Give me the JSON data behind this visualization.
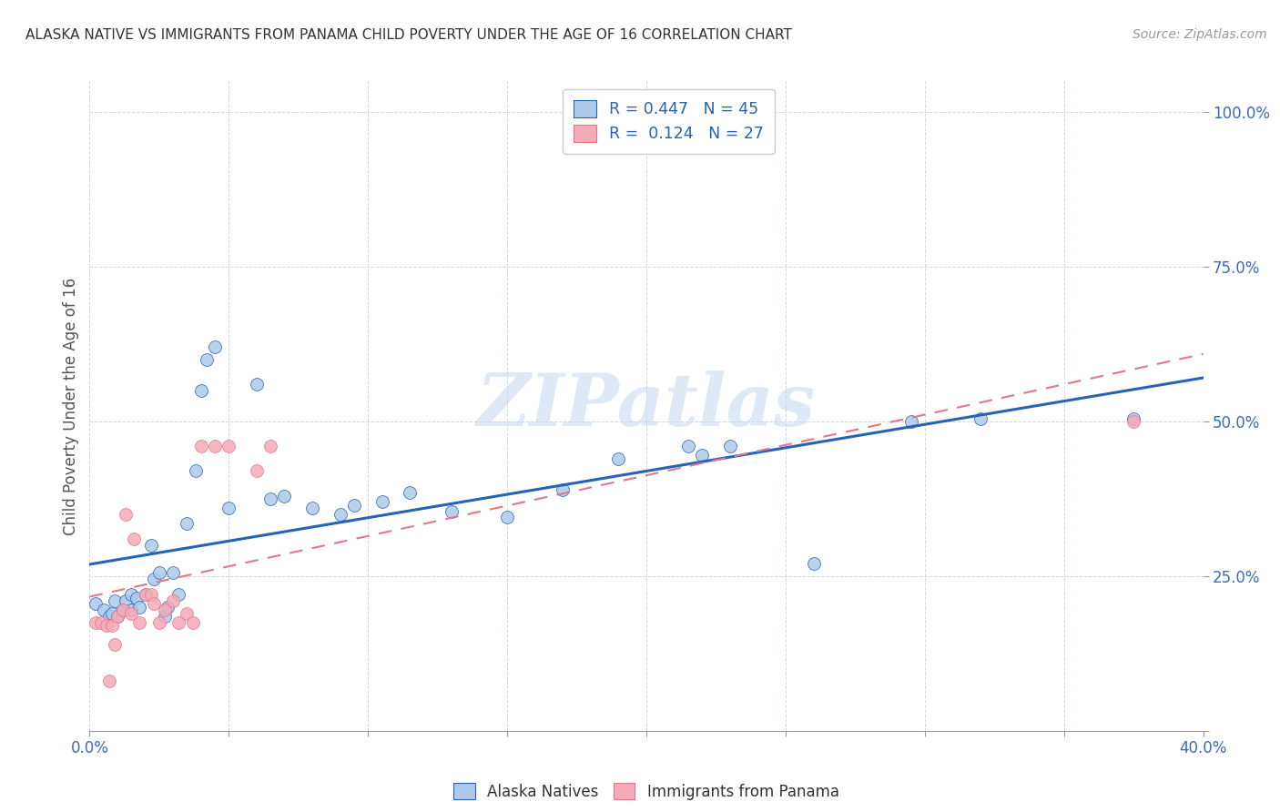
{
  "title": "ALASKA NATIVE VS IMMIGRANTS FROM PANAMA CHILD POVERTY UNDER THE AGE OF 16 CORRELATION CHART",
  "source": "Source: ZipAtlas.com",
  "ylabel": "Child Poverty Under the Age of 16",
  "xlim": [
    0.0,
    0.4
  ],
  "ylim": [
    0.0,
    1.05
  ],
  "xticks": [
    0.0,
    0.05,
    0.1,
    0.15,
    0.2,
    0.25,
    0.3,
    0.35,
    0.4
  ],
  "xtick_labels": [
    "0.0%",
    "",
    "",
    "",
    "",
    "",
    "",
    "",
    "40.0%"
  ],
  "yticks": [
    0.0,
    0.25,
    0.5,
    0.75,
    1.0
  ],
  "ytick_labels": [
    "",
    "25.0%",
    "50.0%",
    "75.0%",
    "100.0%"
  ],
  "alaska_R": "0.447",
  "alaska_N": "45",
  "panama_R": "0.124",
  "panama_N": "27",
  "alaska_color": "#adc9e8",
  "panama_color": "#f5aab8",
  "alaska_line_color": "#2563b8",
  "panama_line_color": "#e07888",
  "watermark": "ZIPatlas",
  "alaska_x": [
    0.002,
    0.005,
    0.007,
    0.008,
    0.009,
    0.01,
    0.012,
    0.013,
    0.015,
    0.015,
    0.017,
    0.018,
    0.02,
    0.022,
    0.023,
    0.025,
    0.027,
    0.028,
    0.03,
    0.032,
    0.035,
    0.038,
    0.04,
    0.042,
    0.045,
    0.05,
    0.06,
    0.065,
    0.07,
    0.08,
    0.09,
    0.095,
    0.105,
    0.115,
    0.13,
    0.15,
    0.17,
    0.19,
    0.215,
    0.22,
    0.23,
    0.26,
    0.295,
    0.32,
    0.375
  ],
  "alaska_y": [
    0.205,
    0.195,
    0.185,
    0.19,
    0.21,
    0.185,
    0.195,
    0.21,
    0.195,
    0.22,
    0.215,
    0.2,
    0.22,
    0.3,
    0.245,
    0.255,
    0.185,
    0.2,
    0.255,
    0.22,
    0.335,
    0.42,
    0.55,
    0.6,
    0.62,
    0.36,
    0.56,
    0.375,
    0.38,
    0.36,
    0.35,
    0.365,
    0.37,
    0.385,
    0.355,
    0.345,
    0.39,
    0.44,
    0.46,
    0.445,
    0.46,
    0.27,
    0.5,
    0.505,
    0.505
  ],
  "panama_x": [
    0.002,
    0.004,
    0.006,
    0.007,
    0.008,
    0.009,
    0.01,
    0.012,
    0.013,
    0.015,
    0.016,
    0.018,
    0.02,
    0.022,
    0.023,
    0.025,
    0.027,
    0.03,
    0.032,
    0.035,
    0.037,
    0.04,
    0.045,
    0.05,
    0.06,
    0.065,
    0.375
  ],
  "panama_y": [
    0.175,
    0.175,
    0.17,
    0.08,
    0.17,
    0.14,
    0.185,
    0.195,
    0.35,
    0.19,
    0.31,
    0.175,
    0.22,
    0.22,
    0.205,
    0.175,
    0.195,
    0.21,
    0.175,
    0.19,
    0.175,
    0.46,
    0.46,
    0.46,
    0.42,
    0.46,
    0.5
  ]
}
